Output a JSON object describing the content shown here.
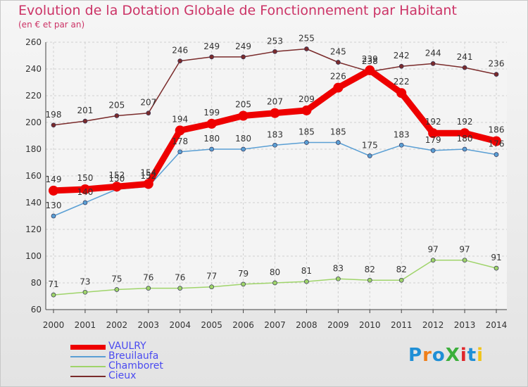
{
  "chart_data": {
    "type": "line",
    "title": "Evolution de la Dotation Globale de Fonctionnement par Habitant",
    "subtitle": "(en € et par an)",
    "x": [
      "2000",
      "2001",
      "2002",
      "2003",
      "2004",
      "2005",
      "2006",
      "2007",
      "2008",
      "2009",
      "2010",
      "2011",
      "2012",
      "2013",
      "2014"
    ],
    "ylim": [
      60,
      260
    ],
    "yticks": [
      "60",
      "80",
      "100",
      "120",
      "140",
      "160",
      "180",
      "200",
      "220",
      "240",
      "260"
    ],
    "grid": true,
    "legend_position": "bottom-left",
    "series": [
      {
        "name": "Cieux",
        "color": "#7a2b2b",
        "values": [
          198,
          201,
          205,
          207,
          246,
          249,
          249,
          253,
          255,
          245,
          238,
          242,
          244,
          241,
          236
        ]
      },
      {
        "name": "Breuilaufa",
        "color": "#5a9fd4",
        "values": [
          130,
          140,
          150,
          152,
          178,
          180,
          180,
          183,
          185,
          185,
          175,
          183,
          179,
          180,
          176
        ]
      },
      {
        "name": "Chamboret",
        "color": "#9fd46a",
        "values": [
          71,
          73,
          75,
          76,
          76,
          77,
          79,
          80,
          81,
          83,
          82,
          82,
          97,
          97,
          91
        ]
      },
      {
        "name": "VAULRY",
        "color": "#ee0000",
        "values": [
          149,
          150,
          152,
          154,
          194,
          199,
          205,
          207,
          209,
          226,
          239,
          222,
          192,
          192,
          186
        ]
      }
    ]
  },
  "legend": [
    "VAULRY",
    "Breuilaufa",
    "Chamboret",
    "Cieux"
  ],
  "logo": {
    "text": "ProXiti",
    "colors": [
      "#1f8fd6",
      "#f07f1a",
      "#1f8fd6",
      "#3caf3c",
      "#e0262b",
      "#1f8fd6",
      "#f0c41a"
    ]
  }
}
